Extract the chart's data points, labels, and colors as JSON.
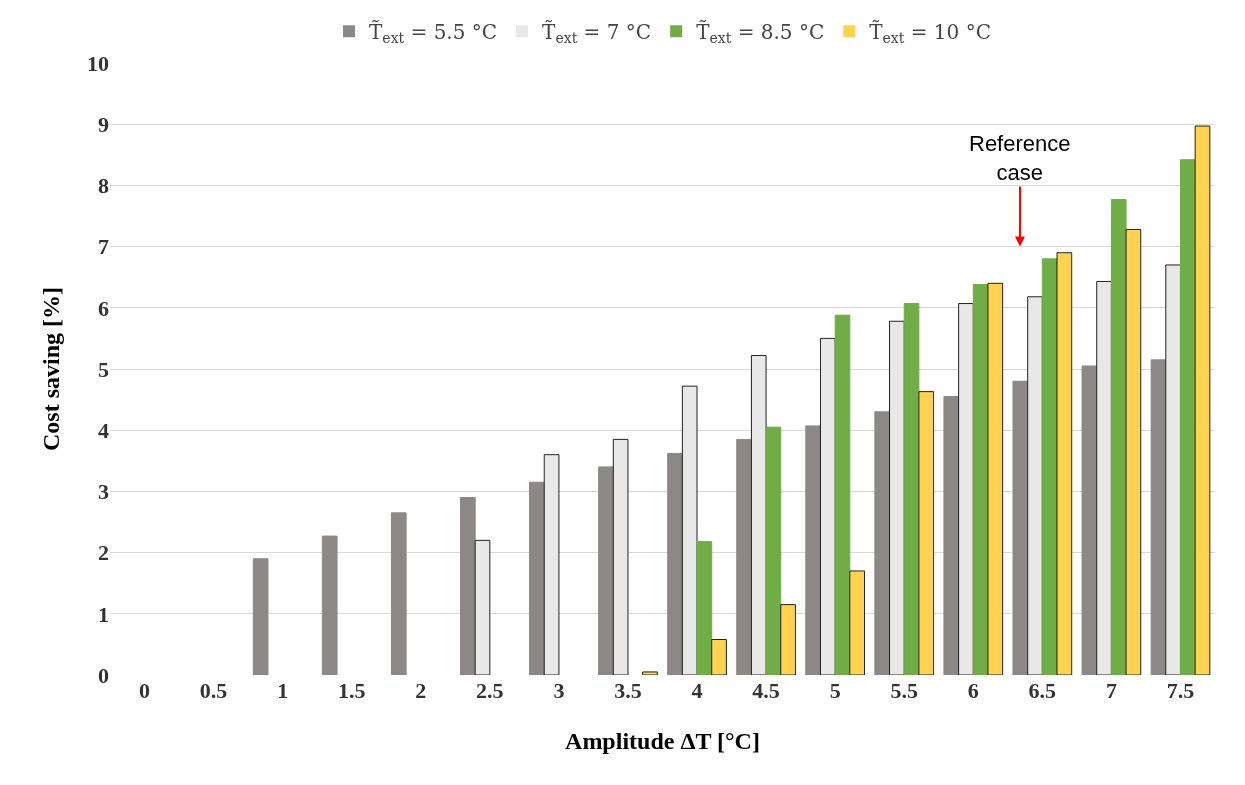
{
  "chart_data": {
    "type": "bar",
    "xlabel": "Amplitude ΔT [°C]",
    "ylabel": "Cost saving [%]",
    "categories": [
      "0",
      "0.5",
      "1",
      "1.5",
      "2",
      "2.5",
      "3",
      "3.5",
      "4",
      "4.5",
      "5",
      "5.5",
      "6",
      "6.5",
      "7",
      "7.5"
    ],
    "series": [
      {
        "name": "T̃$_{ext}$ = 5.5 °C",
        "color": "#8c8888",
        "values": [
          0,
          0,
          1.9,
          2.27,
          2.65,
          2.9,
          3.15,
          3.4,
          3.62,
          3.85,
          4.07,
          4.3,
          4.55,
          4.8,
          5.05,
          5.15
        ]
      },
      {
        "name": "T̃$_{ext}$ = 7 °C",
        "color": "#e8e8e8",
        "values": [
          0,
          0,
          0,
          0,
          0,
          2.2,
          3.6,
          3.85,
          4.72,
          5.22,
          5.5,
          5.78,
          6.07,
          6.18,
          6.43,
          6.7
        ]
      },
      {
        "name": "T̃$_{ext}$ = 8.5 °C",
        "color": "#70ad47",
        "values": [
          0,
          0,
          0,
          0,
          0,
          0,
          0,
          0,
          2.18,
          4.05,
          5.88,
          6.07,
          6.38,
          6.8,
          7.77,
          8.42
        ]
      },
      {
        "name": "T̃$_{ext}$ = 10 °C",
        "color": "#ffd34f",
        "values": [
          0,
          0,
          0,
          0,
          0,
          0,
          0,
          0.05,
          0.58,
          1.15,
          1.7,
          4.63,
          6.4,
          6.9,
          7.28,
          8.97
        ]
      }
    ],
    "ylim": [
      0,
      10
    ],
    "yticks": [
      0,
      1,
      2,
      3,
      4,
      5,
      6,
      7,
      8,
      9,
      10
    ],
    "grid": "y",
    "legend": "top",
    "annotations": [
      "Reference case"
    ]
  }
}
